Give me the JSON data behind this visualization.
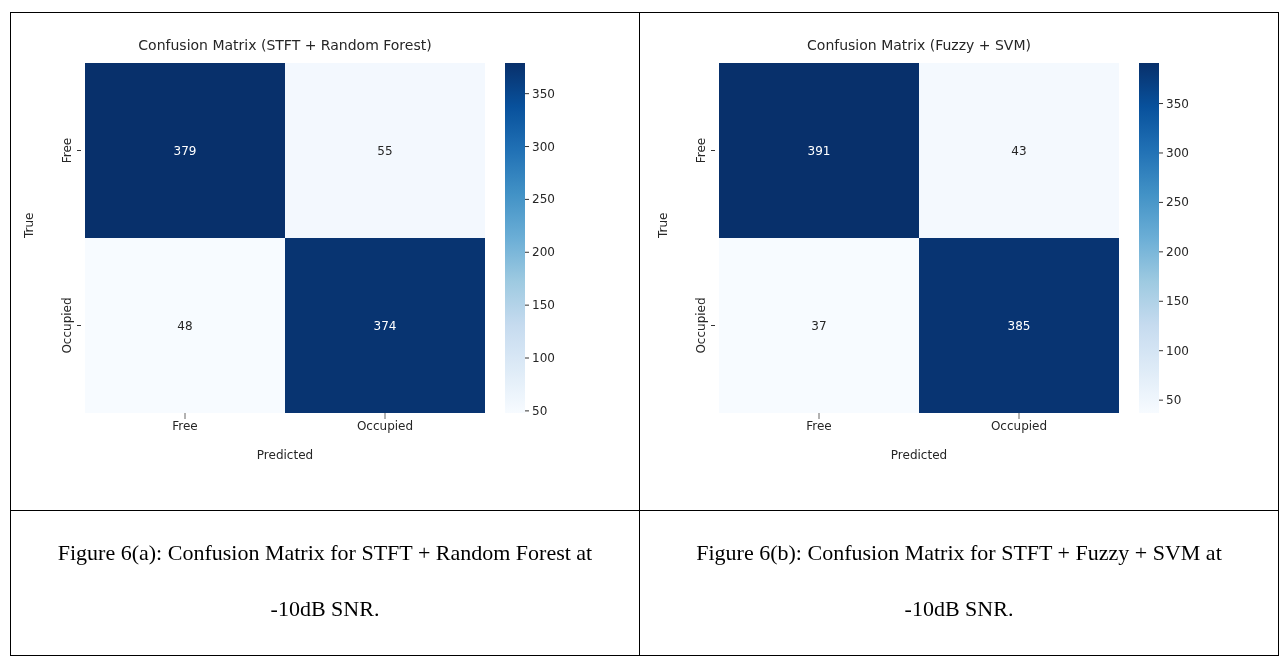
{
  "chart_data": [
    {
      "type": "heatmap",
      "title": "Confusion Matrix (STFT + Random Forest)",
      "xlabel": "Predicted",
      "ylabel": "True",
      "categories": [
        "Free",
        "Occupied"
      ],
      "y_categories": [
        "Free",
        "Occupied"
      ],
      "cells": [
        [
          379,
          55
        ],
        [
          48,
          374
        ]
      ],
      "data_labels": true,
      "clim": [
        48,
        379
      ],
      "cticks": [
        50,
        100,
        150,
        200,
        250,
        300,
        350
      ],
      "annotations": [
        "Figure 6(a): Confusion Matrix for STFT + Random Forest at -10dB SNR."
      ]
    },
    {
      "type": "heatmap",
      "title": "Confusion Matrix (Fuzzy + SVM)",
      "xlabel": "Predicted",
      "ylabel": "True",
      "categories": [
        "Free",
        "Occupied"
      ],
      "y_categories": [
        "Free",
        "Occupied"
      ],
      "cells": [
        [
          391,
          43
        ],
        [
          37,
          385
        ]
      ],
      "data_labels": true,
      "clim": [
        37,
        391
      ],
      "cticks": [
        50,
        100,
        150,
        200,
        250,
        300,
        350
      ],
      "annotations": [
        "Figure 6(b): Confusion Matrix for STFT + Fuzzy + SVM at -10dB SNR."
      ]
    }
  ]
}
